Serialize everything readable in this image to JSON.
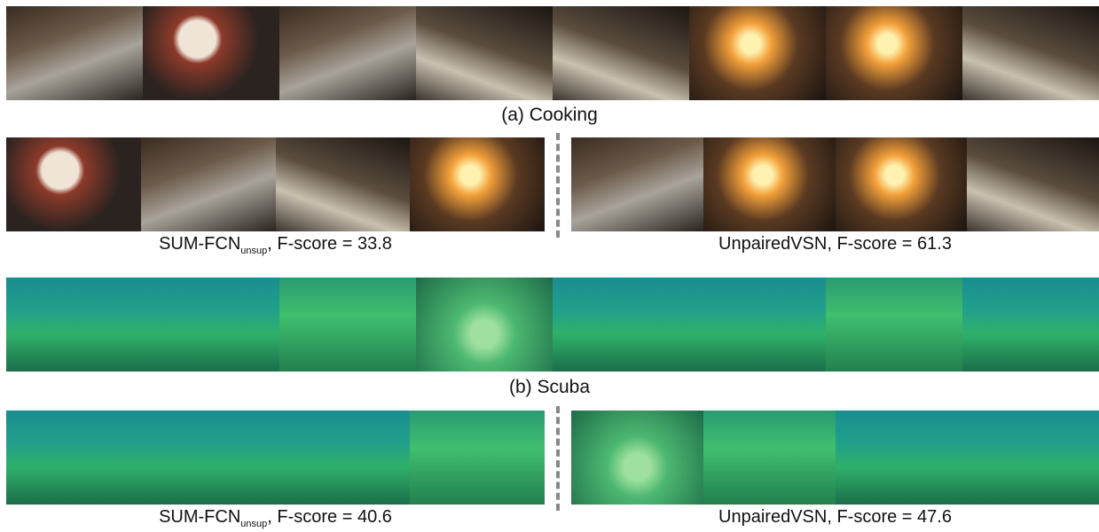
{
  "sections": [
    {
      "label": "(a) Cooking",
      "results": [
        {
          "caption": "SUM-FCN",
          "caption_sub": "unsup",
          "caption_rest": ", F-score = 33.8"
        },
        {
          "caption": "UnpairedVSN, F-score = 61.3"
        }
      ]
    },
    {
      "label": "(b) Scuba",
      "results": [
        {
          "caption": "SUM-FCN",
          "caption_sub": "unsup",
          "caption_rest": ", F-score = 40.6"
        },
        {
          "caption": "UnpairedVSN, F-score = 47.6"
        }
      ]
    }
  ]
}
